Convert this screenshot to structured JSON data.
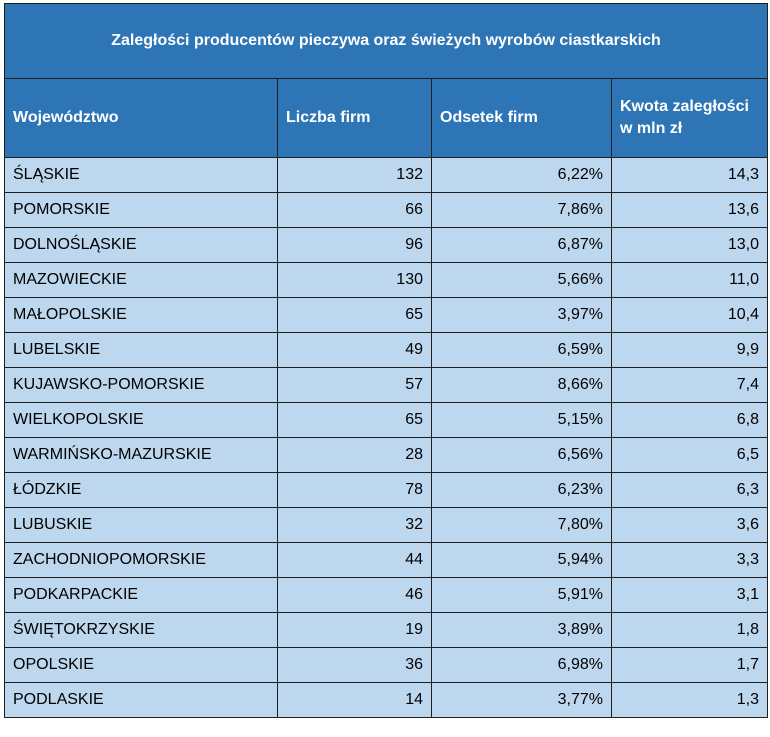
{
  "chart_data": {
    "type": "table",
    "title": "Zaległości producentów pieczywa oraz świeżych wyrobów ciastkarskich",
    "columns": [
      "Województwo",
      "Liczba firm",
      "Odsetek firm",
      "Kwota zaległości w mln zł"
    ],
    "header_lines": {
      "amount_line1": "Kwota zaległości",
      "amount_line2": "w mln zł"
    },
    "rows": [
      {
        "region": "ŚLĄSKIE",
        "firms": "132",
        "share": "6,22%",
        "amount": "14,3"
      },
      {
        "region": "POMORSKIE",
        "firms": "66",
        "share": "7,86%",
        "amount": "13,6"
      },
      {
        "region": "DOLNOŚLĄSKIE",
        "firms": "96",
        "share": "6,87%",
        "amount": "13,0"
      },
      {
        "region": "MAZOWIECKIE",
        "firms": "130",
        "share": "5,66%",
        "amount": "11,0"
      },
      {
        "region": "MAŁOPOLSKIE",
        "firms": "65",
        "share": "3,97%",
        "amount": "10,4"
      },
      {
        "region": "LUBELSKIE",
        "firms": "49",
        "share": "6,59%",
        "amount": "9,9"
      },
      {
        "region": "KUJAWSKO-POMORSKIE",
        "firms": "57",
        "share": "8,66%",
        "amount": "7,4"
      },
      {
        "region": "WIELKOPOLSKIE",
        "firms": "65",
        "share": "5,15%",
        "amount": "6,8"
      },
      {
        "region": "WARMIŃSKO-MAZURSKIE",
        "firms": "28",
        "share": "6,56%",
        "amount": "6,5"
      },
      {
        "region": "ŁÓDZKIE",
        "firms": "78",
        "share": "6,23%",
        "amount": "6,3"
      },
      {
        "region": "LUBUSKIE",
        "firms": "32",
        "share": "7,80%",
        "amount": "3,6"
      },
      {
        "region": "ZACHODNIOPOMORSKIE",
        "firms": "44",
        "share": "5,94%",
        "amount": "3,3"
      },
      {
        "region": "PODKARPACKIE",
        "firms": "46",
        "share": "5,91%",
        "amount": "3,1"
      },
      {
        "region": "ŚWIĘTOKRZYSKIE",
        "firms": "19",
        "share": "3,89%",
        "amount": "1,8"
      },
      {
        "region": "OPOLSKIE",
        "firms": "36",
        "share": "6,98%",
        "amount": "1,7"
      },
      {
        "region": "PODLASKIE",
        "firms": "14",
        "share": "3,77%",
        "amount": "1,3"
      }
    ],
    "colors": {
      "header_bg": "#2e75b6",
      "header_text": "#ffffff",
      "row_bg": "#bdd7ee",
      "border": "#1f1f1f"
    }
  }
}
